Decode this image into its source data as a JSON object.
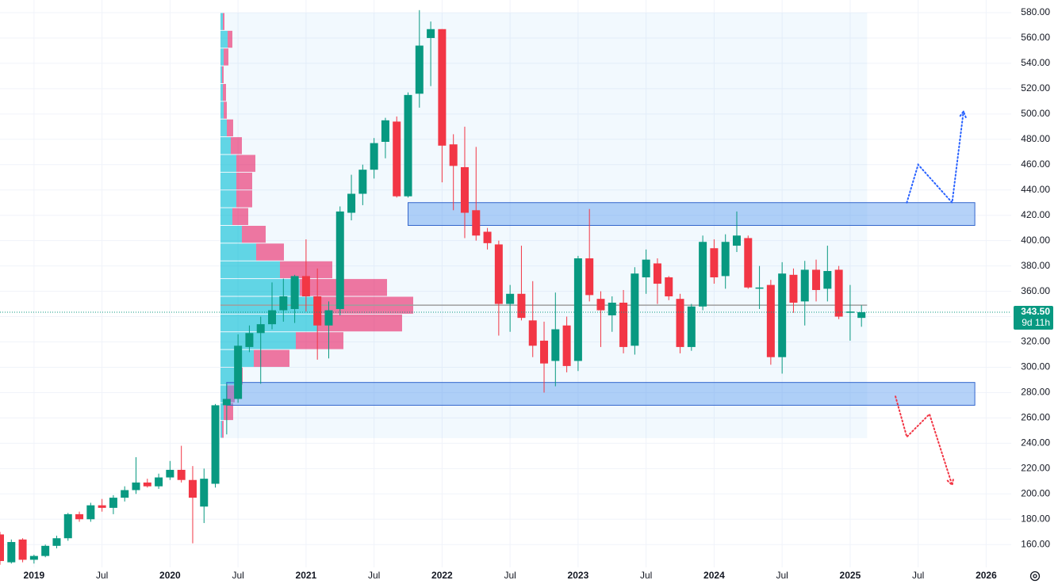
{
  "chart_data": {
    "type": "candlestick",
    "up_color": "#089981",
    "down_color": "#f23645",
    "grid": true,
    "x": [
      "2018-10",
      "2018-11",
      "2018-12",
      "2019-01",
      "2019-02",
      "2019-03",
      "2019-04",
      "2019-05",
      "2019-06",
      "2019-07",
      "2019-08",
      "2019-09",
      "2019-10",
      "2019-11",
      "2019-12",
      "2020-01",
      "2020-02",
      "2020-03",
      "2020-04",
      "2020-05",
      "2020-06",
      "2020-07",
      "2020-08",
      "2020-09",
      "2020-10",
      "2020-11",
      "2020-12",
      "2021-01",
      "2021-02",
      "2021-03",
      "2021-04",
      "2021-05",
      "2021-06",
      "2021-07",
      "2021-08",
      "2021-09",
      "2021-10",
      "2021-11",
      "2021-12",
      "2022-01",
      "2022-02",
      "2022-03",
      "2022-04",
      "2022-05",
      "2022-06",
      "2022-07",
      "2022-08",
      "2022-09",
      "2022-10",
      "2022-11",
      "2022-12",
      "2023-01",
      "2023-02",
      "2023-03",
      "2023-04",
      "2023-05",
      "2023-06",
      "2023-07",
      "2023-08",
      "2023-09",
      "2023-10",
      "2023-11",
      "2023-12",
      "2024-01",
      "2024-02",
      "2024-03",
      "2024-04",
      "2024-05",
      "2024-06",
      "2024-07",
      "2024-08",
      "2024-09",
      "2024-10",
      "2024-11",
      "2024-12",
      "2025-01",
      "2025-02"
    ],
    "open": [
      168,
      146,
      164,
      148,
      151,
      159,
      165,
      184,
      180,
      191,
      189,
      197,
      203,
      209,
      206,
      213,
      219,
      211,
      190,
      208,
      270,
      275,
      316,
      327,
      334,
      345,
      346,
      372,
      356,
      333,
      346,
      422,
      437,
      456,
      478,
      494,
      435,
      516,
      560,
      567,
      476,
      458,
      424,
      407,
      397,
      350,
      358,
      337,
      321,
      305,
      333,
      305,
      386,
      354,
      341,
      351,
      317,
      371,
      382,
      371,
      354,
      316,
      348,
      394,
      372,
      396,
      402,
      362,
      365,
      308,
      373,
      352,
      377,
      362,
      377,
      343,
      339
    ],
    "high": [
      170,
      164,
      165,
      152,
      160,
      167,
      185,
      186,
      193,
      196,
      199,
      206,
      229,
      212,
      216,
      226,
      238,
      222,
      220,
      271,
      287,
      326,
      333,
      340,
      367,
      370,
      373,
      401,
      378,
      352,
      427,
      452,
      460,
      481,
      497,
      498,
      517,
      582,
      573,
      567,
      484,
      490,
      474,
      410,
      400,
      365,
      396,
      368,
      336,
      359,
      340,
      388,
      425,
      360,
      356,
      361,
      379,
      393,
      386,
      372,
      358,
      350,
      404,
      401,
      405,
      423,
      404,
      380,
      369,
      383,
      378,
      384,
      385,
      396,
      380,
      365,
      349
    ],
    "low": [
      144,
      145,
      146,
      145,
      150,
      157,
      163,
      178,
      178,
      186,
      184,
      194,
      200,
      205,
      204,
      211,
      209,
      161,
      177,
      205,
      247,
      272,
      312,
      287,
      330,
      336,
      335,
      344,
      306,
      307,
      341,
      416,
      428,
      449,
      465,
      434,
      434,
      505,
      522,
      446,
      424,
      402,
      400,
      393,
      325,
      328,
      337,
      308,
      280,
      285,
      296,
      297,
      352,
      316,
      328,
      311,
      310,
      358,
      350,
      353,
      311,
      313,
      345,
      366,
      362,
      391,
      362,
      346,
      302,
      295,
      343,
      333,
      352,
      352,
      338,
      321,
      332
    ],
    "close": [
      147,
      162,
      148,
      151,
      159,
      165,
      184,
      180,
      191,
      189,
      197,
      203,
      209,
      206,
      213,
      219,
      211,
      197,
      212,
      270,
      275,
      317,
      327,
      334,
      345,
      356,
      372,
      356,
      333,
      345,
      423,
      437,
      456,
      477,
      495,
      435,
      515,
      554,
      567,
      475,
      459,
      422,
      404,
      398,
      350,
      358,
      339,
      317,
      303,
      330,
      301,
      386,
      357,
      345,
      351,
      316,
      374,
      385,
      366,
      356,
      316,
      348,
      399,
      371,
      399,
      404,
      363,
      363,
      308,
      374,
      351,
      377,
      361,
      376,
      340,
      344,
      343.5
    ],
    "xlim": [
      "2018-10",
      "2026-03"
    ],
    "ylim": [
      142,
      590
    ],
    "xticks": [
      {
        "value": "2019-01",
        "label": "2019"
      },
      {
        "value": "2019-07",
        "label": "Jul"
      },
      {
        "value": "2020-01",
        "label": "2020"
      },
      {
        "value": "2020-07",
        "label": "Jul"
      },
      {
        "value": "2021-01",
        "label": "2021"
      },
      {
        "value": "2021-07",
        "label": "Jul"
      },
      {
        "value": "2022-01",
        "label": "2022"
      },
      {
        "value": "2022-07",
        "label": "Jul"
      },
      {
        "value": "2023-01",
        "label": "2023"
      },
      {
        "value": "2023-07",
        "label": "Jul"
      },
      {
        "value": "2024-01",
        "label": "2024"
      },
      {
        "value": "2024-07",
        "label": "Jul"
      },
      {
        "value": "2025-01",
        "label": "2025"
      },
      {
        "value": "2025-07",
        "label": "Jul"
      },
      {
        "value": "2026-01",
        "label": "2026"
      }
    ],
    "yticks": [
      {
        "value": 160,
        "label": "160.00"
      },
      {
        "value": 180,
        "label": "180.00"
      },
      {
        "value": 200,
        "label": "200.00"
      },
      {
        "value": 220,
        "label": "220.00"
      },
      {
        "value": 240,
        "label": "240.00"
      },
      {
        "value": 260,
        "label": "260.00"
      },
      {
        "value": 280,
        "label": "280.00"
      },
      {
        "value": 300,
        "label": "300.00"
      },
      {
        "value": 320,
        "label": "320.00"
      },
      {
        "value": 340,
        "label": "340.00"
      },
      {
        "value": 360,
        "label": "360.00"
      },
      {
        "value": 380,
        "label": "380.00"
      },
      {
        "value": 400,
        "label": "400.00"
      },
      {
        "value": 420,
        "label": "420.00"
      },
      {
        "value": 440,
        "label": "440.00"
      },
      {
        "value": 460,
        "label": "460.00"
      },
      {
        "value": 480,
        "label": "480.00"
      },
      {
        "value": 500,
        "label": "500.00"
      },
      {
        "value": 520,
        "label": "520.00"
      },
      {
        "value": 540,
        "label": "540.00"
      },
      {
        "value": 560,
        "label": "560.00"
      },
      {
        "value": 580,
        "label": "580.00"
      }
    ],
    "last_price": {
      "value": 343.5,
      "label": "343.50",
      "countdown": "9d 11h",
      "color": "#089981"
    },
    "volume_profile": {
      "start": "2020-06",
      "end": "2025-02",
      "up_color": "#00bcd4",
      "down_color": "#e91e63",
      "poc_color": "#9e9e9e",
      "area_color": "#2196f3",
      "bins": [
        244,
        258,
        272,
        286,
        300,
        314,
        328,
        342,
        356,
        370,
        384,
        398,
        412,
        426,
        440,
        454,
        468,
        482,
        496,
        510,
        524,
        538,
        552,
        566,
        580
      ],
      "up": [
        2,
        4,
        8,
        18,
        42,
        95,
        122,
        125,
        100,
        75,
        45,
        27,
        15,
        20,
        20,
        20,
        13,
        8,
        4,
        3,
        2,
        4,
        9,
        3
      ],
      "down": [
        2,
        12,
        10,
        10,
        45,
        60,
        107,
        118,
        110,
        66,
        35,
        30,
        20,
        20,
        20,
        24,
        14,
        8,
        4,
        4,
        2,
        6,
        6,
        2
      ]
    },
    "zones": [
      {
        "low": 412,
        "high": 430,
        "start": "2021-10",
        "end": "2025-12",
        "color": "#5b9cf0"
      },
      {
        "low": 270,
        "high": 288,
        "start": "2020-06",
        "end": "2025-12",
        "color": "#5b9cf0"
      }
    ],
    "projections": [
      {
        "color": "#2962ff",
        "x": [
          "2025-06",
          "2025-07",
          "2025-10",
          "2025-11"
        ],
        "y": [
          430,
          460,
          430,
          502
        ]
      },
      {
        "color": "#f23645",
        "x": [
          "2025-05",
          "2025-06",
          "2025-08",
          "2025-10"
        ],
        "y": [
          277,
          245,
          263,
          207
        ]
      }
    ]
  }
}
